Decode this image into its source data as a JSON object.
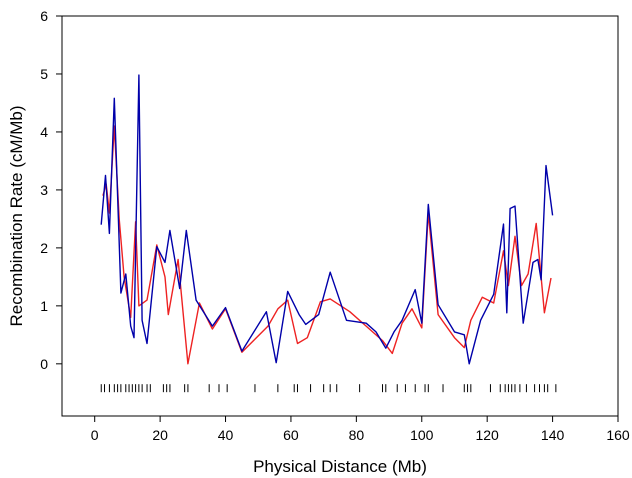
{
  "chart_data": {
    "type": "line",
    "title": "",
    "xlabel": "Physical Distance (Mb)",
    "ylabel": "Recombination Rate (cM/Mb)",
    "xlim": [
      -10,
      160
    ],
    "ylim": [
      -0.9,
      6
    ],
    "xticks": [
      0,
      20,
      40,
      60,
      80,
      100,
      120,
      140,
      160
    ],
    "yticks": [
      0,
      1,
      2,
      3,
      4,
      5,
      6
    ],
    "grid": false,
    "legend": "none",
    "series": [
      {
        "color": "#0000aa",
        "points": [
          [
            2.0,
            2.4
          ],
          [
            3.3,
            3.25
          ],
          [
            4.5,
            2.25
          ],
          [
            6.0,
            4.58
          ],
          [
            8.0,
            1.22
          ],
          [
            9.5,
            1.55
          ],
          [
            11.0,
            0.65
          ],
          [
            12.0,
            0.45
          ],
          [
            13.5,
            4.98
          ],
          [
            14.5,
            0.75
          ],
          [
            16.0,
            0.35
          ],
          [
            19.0,
            2.02
          ],
          [
            21.5,
            1.75
          ],
          [
            23.0,
            2.3
          ],
          [
            26.0,
            1.3
          ],
          [
            28.0,
            2.3
          ],
          [
            31.0,
            1.1
          ],
          [
            36.0,
            0.65
          ],
          [
            40.0,
            0.97
          ],
          [
            45.0,
            0.22
          ],
          [
            52.5,
            0.9
          ],
          [
            55.5,
            0.02
          ],
          [
            59.0,
            1.25
          ],
          [
            62.5,
            0.85
          ],
          [
            64.5,
            0.68
          ],
          [
            68.5,
            0.85
          ],
          [
            72.0,
            1.58
          ],
          [
            77.0,
            0.75
          ],
          [
            83.0,
            0.7
          ],
          [
            86.0,
            0.55
          ],
          [
            89.0,
            0.27
          ],
          [
            91.5,
            0.55
          ],
          [
            94.0,
            0.75
          ],
          [
            98.0,
            1.28
          ],
          [
            100.0,
            0.7
          ],
          [
            102.0,
            2.75
          ],
          [
            105.0,
            1.02
          ],
          [
            110.0,
            0.55
          ],
          [
            113.0,
            0.5
          ],
          [
            114.5,
            0.0
          ],
          [
            118.0,
            0.75
          ],
          [
            122.0,
            1.2
          ],
          [
            125.0,
            2.41
          ],
          [
            126.0,
            0.88
          ],
          [
            127.0,
            2.68
          ],
          [
            128.5,
            2.72
          ],
          [
            131.0,
            0.7
          ],
          [
            134.0,
            1.75
          ],
          [
            135.5,
            1.8
          ],
          [
            136.5,
            1.45
          ],
          [
            138.0,
            3.42
          ],
          [
            140.0,
            2.56
          ]
        ]
      },
      {
        "color": "#ee2222",
        "points": [
          [
            2.5,
            2.9
          ],
          [
            3.5,
            3.1
          ],
          [
            4.5,
            2.6
          ],
          [
            6.0,
            4.1
          ],
          [
            7.5,
            2.5
          ],
          [
            9.0,
            1.5
          ],
          [
            11.0,
            0.8
          ],
          [
            12.5,
            2.45
          ],
          [
            13.5,
            1.0
          ],
          [
            16.0,
            1.1
          ],
          [
            19.0,
            2.05
          ],
          [
            21.5,
            1.5
          ],
          [
            22.5,
            0.85
          ],
          [
            25.5,
            1.8
          ],
          [
            28.5,
            0.0
          ],
          [
            32.0,
            1.05
          ],
          [
            36.0,
            0.6
          ],
          [
            40.0,
            0.95
          ],
          [
            45.0,
            0.2
          ],
          [
            53.0,
            0.65
          ],
          [
            56.0,
            0.95
          ],
          [
            59.0,
            1.1
          ],
          [
            62.0,
            0.35
          ],
          [
            65.0,
            0.45
          ],
          [
            69.0,
            1.07
          ],
          [
            72.0,
            1.12
          ],
          [
            78.0,
            0.9
          ],
          [
            84.0,
            0.6
          ],
          [
            88.0,
            0.4
          ],
          [
            91.0,
            0.18
          ],
          [
            94.0,
            0.7
          ],
          [
            97.0,
            0.95
          ],
          [
            100.0,
            0.62
          ],
          [
            102.0,
            2.6
          ],
          [
            105.0,
            0.85
          ],
          [
            110.0,
            0.45
          ],
          [
            113.0,
            0.28
          ],
          [
            115.0,
            0.75
          ],
          [
            118.5,
            1.15
          ],
          [
            122.0,
            1.05
          ],
          [
            125.0,
            1.95
          ],
          [
            126.5,
            1.35
          ],
          [
            128.5,
            2.2
          ],
          [
            130.5,
            1.35
          ],
          [
            132.5,
            1.55
          ],
          [
            135.0,
            2.42
          ],
          [
            137.5,
            0.88
          ],
          [
            139.5,
            1.48
          ]
        ]
      }
    ],
    "marker_rug": {
      "y": -0.42,
      "color": "#000000",
      "positions": [
        2,
        3,
        4.5,
        6,
        7,
        8,
        9.5,
        10.5,
        11.5,
        12.5,
        13.5,
        14.5,
        16,
        17,
        21,
        22,
        23,
        27.5,
        28.5,
        35,
        38,
        40.5,
        49,
        56,
        61,
        62,
        66,
        70,
        72,
        74,
        81,
        88,
        89,
        92.5,
        95,
        98,
        101,
        102,
        106.5,
        113,
        114,
        115,
        121,
        124,
        125.5,
        126.5,
        127.5,
        128.5,
        130,
        132,
        134.5,
        136,
        137.5,
        138.5,
        141
      ]
    }
  }
}
